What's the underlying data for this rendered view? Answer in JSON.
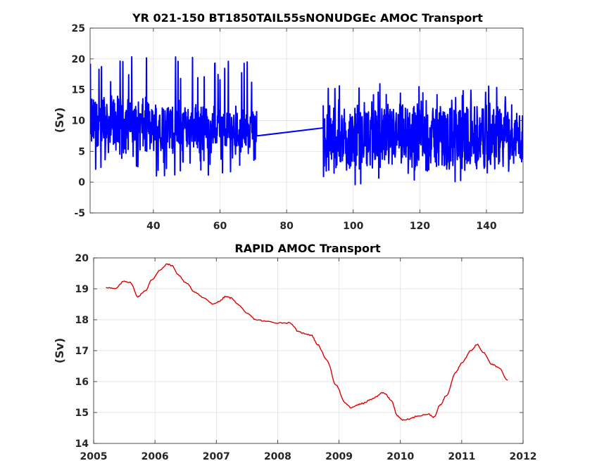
{
  "chart_data": [
    {
      "type": "line",
      "title": "YR 021-150 BT1850TAIL55sNONUDGEc AMOC Transport",
      "xlabel": "",
      "ylabel": "(Sv)",
      "xlim": [
        21,
        151
      ],
      "ylim": [
        -5,
        25
      ],
      "xticks": [
        40,
        60,
        80,
        100,
        120,
        140
      ],
      "yticks": [
        -5,
        0,
        5,
        10,
        15,
        20,
        25
      ],
      "grid": true,
      "color": "#0000ff",
      "series": [
        {
          "segments": [
            {
              "x_range": [
                21,
                71
              ],
              "mean": 9.8,
              "typical_min": 5.5,
              "typical_max": 16.5,
              "min": 1.0,
              "max": 20.5,
              "trend_end_mean": 8.5
            },
            {
              "x_range": [
                71,
                91
              ],
              "line_from": 7.5,
              "line_to": 8.8
            },
            {
              "x_range": [
                91,
                151
              ],
              "mean": 7.6,
              "typical_min": 2.8,
              "typical_max": 14.0,
              "min": -0.6,
              "max": 16.0
            }
          ]
        }
      ]
    },
    {
      "type": "line",
      "title": "RAPID AMOC Transport",
      "xlabel": "",
      "ylabel": "(Sv)",
      "xlim": [
        2005,
        2012
      ],
      "ylim": [
        14,
        20
      ],
      "xticks": [
        2005,
        2006,
        2007,
        2008,
        2009,
        2010,
        2011,
        2012
      ],
      "yticks": [
        14,
        15,
        16,
        17,
        18,
        19,
        20
      ],
      "grid": true,
      "color": "#e00000",
      "series": [
        {
          "x": [
            2005.2,
            2005.35,
            2005.5,
            2005.6,
            2005.72,
            2005.85,
            2005.95,
            2006.08,
            2006.2,
            2006.28,
            2006.38,
            2006.5,
            2006.65,
            2006.8,
            2006.95,
            2007.05,
            2007.15,
            2007.25,
            2007.35,
            2007.5,
            2007.65,
            2007.8,
            2008.0,
            2008.2,
            2008.35,
            2008.45,
            2008.55,
            2008.65,
            2008.8,
            2008.95,
            2009.1,
            2009.2,
            2009.3,
            2009.4,
            2009.5,
            2009.6,
            2009.7,
            2009.75,
            2009.85,
            2009.95,
            2010.05,
            2010.15,
            2010.3,
            2010.45,
            2010.55,
            2010.65,
            2010.75,
            2010.9,
            2011.0,
            2011.15,
            2011.25,
            2011.35,
            2011.5,
            2011.6,
            2011.75
          ],
          "values": [
            19.05,
            19.0,
            19.25,
            19.2,
            18.75,
            18.95,
            19.3,
            19.6,
            19.8,
            19.75,
            19.45,
            19.2,
            18.9,
            18.7,
            18.5,
            18.6,
            18.75,
            18.7,
            18.5,
            18.2,
            18.0,
            17.95,
            17.9,
            17.9,
            17.6,
            17.55,
            17.5,
            17.2,
            16.7,
            15.9,
            15.3,
            15.15,
            15.25,
            15.3,
            15.4,
            15.5,
            15.65,
            15.6,
            15.4,
            14.9,
            14.75,
            14.8,
            14.9,
            14.95,
            14.85,
            15.25,
            15.55,
            16.3,
            16.6,
            17.0,
            17.2,
            16.95,
            16.55,
            16.45,
            16.05
          ]
        }
      ]
    }
  ]
}
